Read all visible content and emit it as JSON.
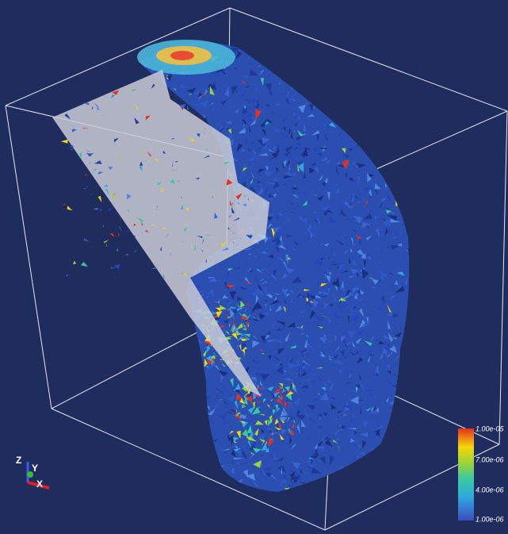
{
  "colorbar": {
    "labels": [
      "1.00e-05",
      "7.00e-06",
      "4.00e-06",
      "1.00e-06"
    ]
  },
  "axes": {
    "z": "Z",
    "y": "Y",
    "x": "X"
  }
}
